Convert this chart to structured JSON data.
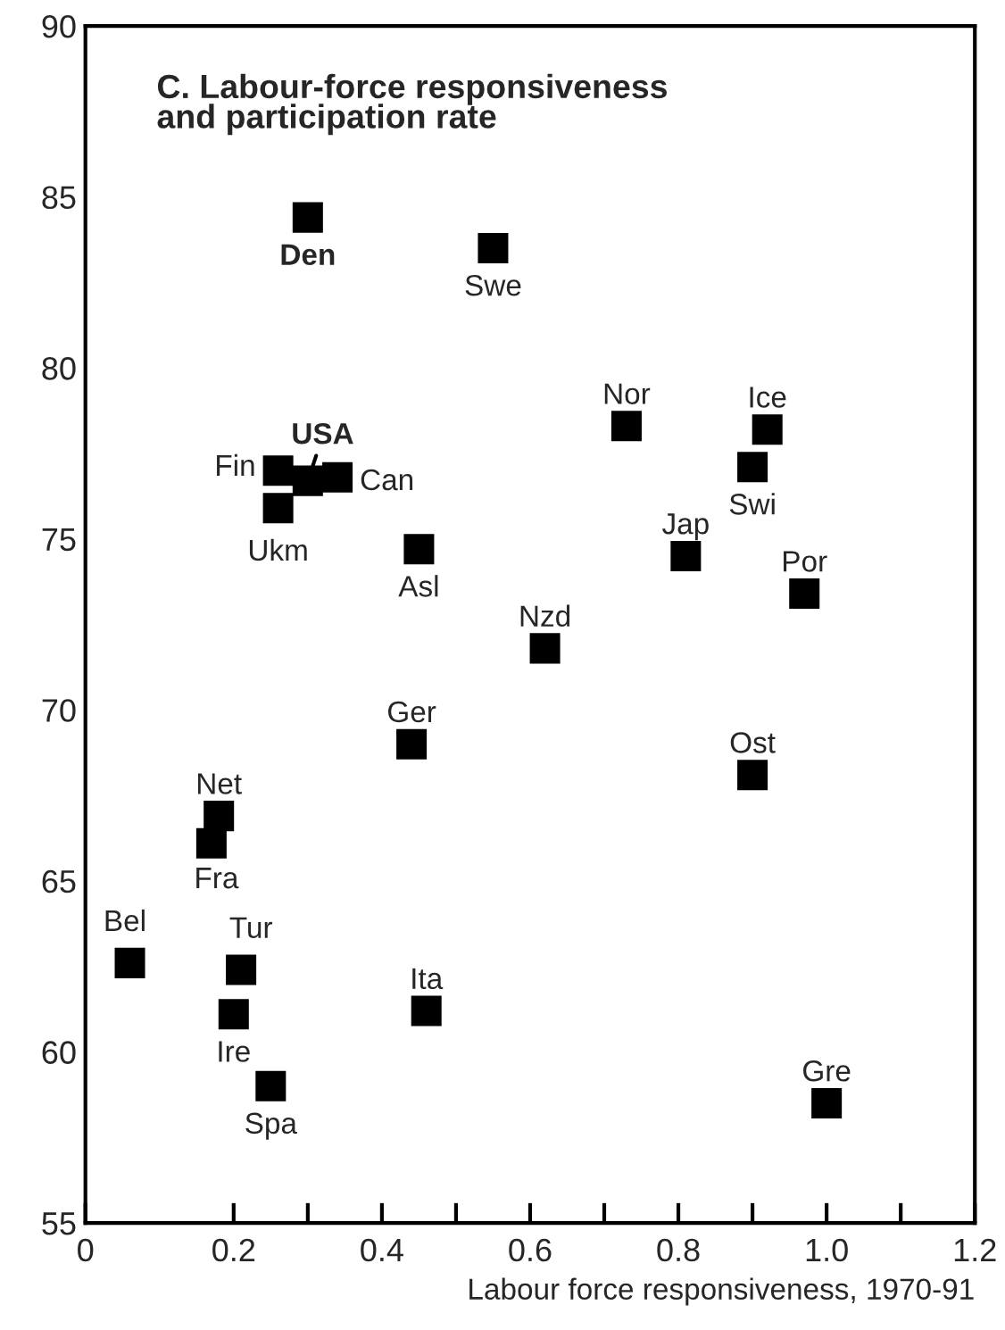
{
  "chart_data": {
    "type": "scatter",
    "title": "C. Labour-force responsiveness\nand participation rate",
    "xlabel": "Labour force responsiveness, 1970-91",
    "x": [
      0.3,
      0.55,
      0.73,
      0.92,
      0.9,
      0.26,
      0.3,
      0.34,
      0.26,
      0.45,
      0.81,
      0.97,
      0.62,
      0.44,
      0.18,
      0.17,
      0.06,
      0.21,
      0.2,
      0.46,
      0.25,
      0.9,
      1.0
    ],
    "values": [
      84.4,
      83.5,
      78.3,
      78.2,
      77.1,
      77.0,
      76.7,
      76.8,
      75.9,
      74.7,
      74.5,
      73.4,
      71.8,
      69.0,
      66.9,
      66.1,
      62.6,
      62.4,
      61.1,
      61.2,
      59.0,
      68.1,
      58.5
    ],
    "value_labels": [
      "Den",
      "Swe",
      "Nor",
      "Ice",
      "Swi",
      "Fin",
      "USA",
      "Can",
      "Ukm",
      "Asl",
      "Jap",
      "Por",
      "Nzd",
      "Ger",
      "Net",
      "Fra",
      "Bel",
      "Tur",
      "Ire",
      "Ita",
      "Spa",
      "Ost",
      "Gre"
    ],
    "color": "#000000",
    "marker": "square",
    "xlim": [
      0,
      1.2
    ],
    "ylim": [
      55,
      90
    ],
    "xticks": [
      {
        "value": 0,
        "label": "0"
      },
      0.2,
      {
        "value": 0.3,
        "label": null
      },
      0.4,
      {
        "value": 0.5,
        "label": null
      },
      0.6,
      {
        "value": 0.7,
        "label": null
      },
      0.8,
      {
        "value": 0.9,
        "label": null
      },
      {
        "value": 1.0,
        "label": "1.0"
      },
      {
        "value": 1.1,
        "label": null
      },
      1.2
    ],
    "yticks": [
      55,
      60,
      65,
      70,
      75,
      80,
      85,
      90
    ],
    "grid": false,
    "legend": false
  }
}
